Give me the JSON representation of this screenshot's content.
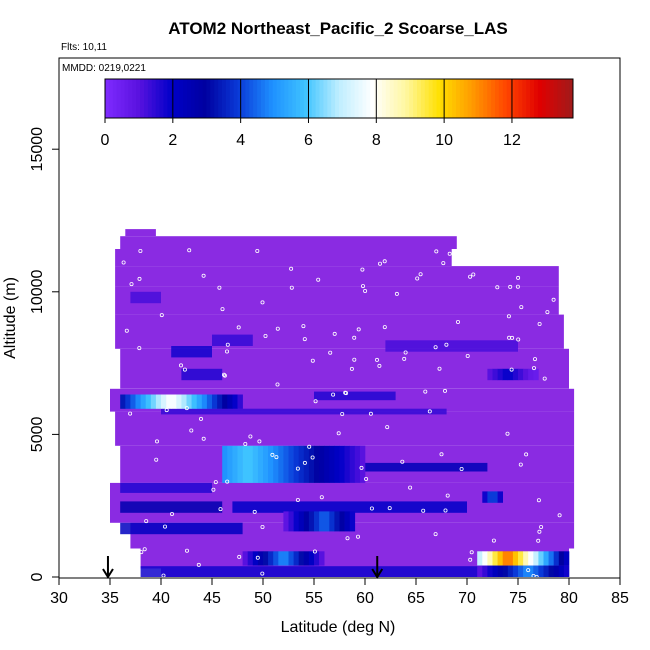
{
  "chart_data": {
    "type": "heatmap",
    "title": "ATOM2 Northeast_Pacific_2 Scoarse_LAS",
    "flights_text": "Flts: 10,11",
    "mmdd_text": "MMDD: 0219,0221",
    "xlabel": "Latitude (deg N)",
    "ylabel": "Altitude (m)",
    "xlim": [
      30,
      85
    ],
    "ylim": [
      0,
      17500
    ],
    "x_ticks": [
      "30",
      "35",
      "40",
      "45",
      "50",
      "55",
      "60",
      "65",
      "70",
      "75",
      "80",
      "85"
    ],
    "y_ticks": [
      "0",
      "5000",
      "10000",
      "15000"
    ],
    "colorbar": {
      "range": [
        0,
        13.8
      ],
      "ticks": [
        "0",
        "2",
        "4",
        "6",
        "8",
        "10",
        "12"
      ],
      "colors": [
        "#7f2bff",
        "#5a12e0",
        "#0000c8",
        "#0000a0",
        "#0a3ad8",
        "#1e90ff",
        "#3fc4ff",
        "#bfeeff",
        "#ffffff",
        "#fff7a0",
        "#ffe000",
        "#ff9900",
        "#ff4500",
        "#e00000",
        "#a01b1b"
      ]
    },
    "arrows_at_latitude": [
      34.8,
      61.2
    ],
    "background_color": "#8a2be2",
    "hotspots": [
      {
        "lat": [
          36.0,
          48.0
        ],
        "alt": [
          5900,
          6400
        ],
        "peak_lat": 41.0,
        "value": 8.0
      },
      {
        "lat": [
          46.0,
          60.0
        ],
        "alt": [
          3300,
          4600
        ],
        "peak_lat": 48.5,
        "value": 6.0
      },
      {
        "lat": [
          52.0,
          59.0
        ],
        "alt": [
          1600,
          2300
        ],
        "peak_lat": 56.0,
        "value": 4.5
      },
      {
        "lat": [
          48.0,
          56.0
        ],
        "alt": [
          400,
          900
        ],
        "peak_lat": 52.0,
        "value": 5.0
      },
      {
        "lat": [
          71.0,
          80.0
        ],
        "alt": [
          400,
          900
        ],
        "peak_lat": 74.0,
        "value": 11.5
      },
      {
        "lat": [
          71.0,
          80.0
        ],
        "alt": [
          0,
          400
        ],
        "peak_lat": 76.0,
        "value": 5.0
      },
      {
        "lat": [
          71.5,
          73.5
        ],
        "alt": [
          2600,
          3000
        ],
        "peak_lat": 72.5,
        "value": 5.0
      },
      {
        "lat": [
          72.0,
          77.0
        ],
        "alt": [
          6900,
          7300
        ],
        "peak_lat": 74.0,
        "value": 2.0
      }
    ]
  }
}
